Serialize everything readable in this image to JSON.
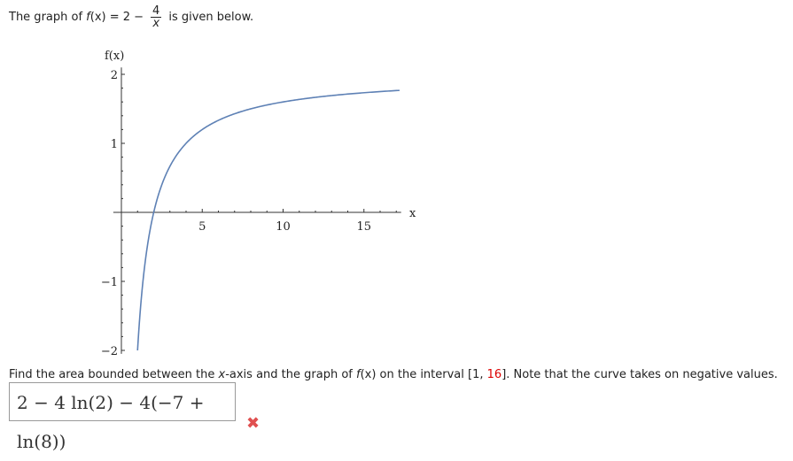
{
  "intro": {
    "prefix": "The graph of ",
    "fname": "f",
    "fx_rest": "(x) = 2 −",
    "numerator": "4",
    "denominator": "x",
    "suffix": "is given below."
  },
  "chart_data": {
    "type": "line",
    "function": "f(x) = 2 - 4/x",
    "xlabel": "x",
    "ylabel": "f(x)",
    "xlim": [
      0,
      17.3
    ],
    "ylim": [
      -2,
      2
    ],
    "x_domain": [
      1,
      17.2
    ],
    "x_ticks": [
      {
        "value": 5,
        "label": "5"
      },
      {
        "value": 10,
        "label": "10"
      },
      {
        "value": 15,
        "label": "15"
      }
    ],
    "y_ticks": [
      {
        "value": 2,
        "label": "2"
      },
      {
        "value": 1,
        "label": "1"
      },
      {
        "value": -1,
        "label": "−1"
      },
      {
        "value": -2,
        "label": "−2"
      }
    ],
    "grid": false,
    "line_color": "#5e81b5"
  },
  "question": {
    "part1": "Find the area bounded between the ",
    "xvar": "x",
    "part2": "-axis and the graph of ",
    "fvar": "f",
    "part3": "(x) on the interval [1, ",
    "highlight": "16",
    "part4": "]. Note that the curve takes on negative values."
  },
  "answer": {
    "value": "2 − 4 ln(2) − 4(−7 + ln(8))",
    "status_icon": "x-mark-icon",
    "status_color": "#e05050"
  }
}
